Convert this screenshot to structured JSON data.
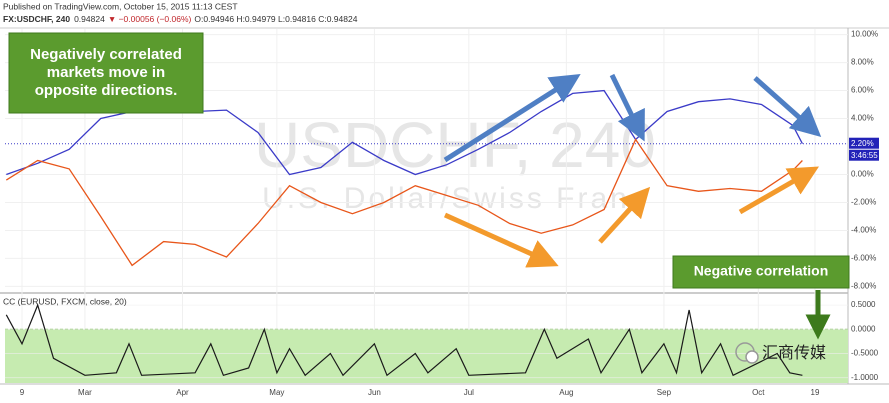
{
  "header": {
    "published": "Published on TradingView.com, October 15, 2015 11:13 CEST",
    "symbol": "FX:USDCHF, 240",
    "price": "0.94824",
    "change": "▼ −0.00056 (−0.06%)",
    "ohlc": "O:0.94946 H:0.94979 L:0.94816 C:0.94824"
  },
  "watermark": "汇商传媒",
  "chart_data": [
    {
      "type": "line",
      "watermark": "USDCHF, 240",
      "watermark_subtitle": "U.S. Dollar/Swiss Franc",
      "annotations": [
        "Negatively correlated markets move in opposite directions.",
        "Negative correlation"
      ],
      "price_label": {
        "value": 2.2,
        "label": "2.20%"
      },
      "countdown": "3:46:55",
      "x": [
        -5,
        5,
        15,
        25,
        35,
        45,
        55,
        65,
        75,
        85,
        95,
        105,
        115,
        125,
        135,
        145,
        155,
        165,
        175,
        185,
        195,
        205,
        215,
        225,
        235,
        245,
        248
      ],
      "series": [
        {
          "color": "#3b3bc8",
          "values": [
            0,
            0.8,
            1.8,
            4,
            4.5,
            4.8,
            4.5,
            4.6,
            3,
            0,
            0.5,
            2.3,
            1,
            0,
            0.7,
            1.8,
            3,
            4.5,
            5.8,
            6,
            2.5,
            4.5,
            5.2,
            5.4,
            5,
            3.5,
            2.2
          ]
        },
        {
          "color": "#e8561a",
          "values": [
            -0.4,
            1,
            0.4,
            -3,
            -6.5,
            -4.8,
            -5,
            -5.9,
            -3.5,
            -0.8,
            -2,
            -2.8,
            -2,
            -0.8,
            -1.5,
            -2.2,
            -3.5,
            -4.2,
            -3.6,
            -2.5,
            2.5,
            -0.8,
            -1.2,
            -1,
            -1.2,
            0.3,
            1
          ]
        }
      ],
      "ylim": [
        -8.4,
        10.4
      ],
      "yticks": [
        {
          "value": 10,
          "label": "10.00%"
        },
        {
          "value": 8,
          "label": "8.00%"
        },
        {
          "value": 6,
          "label": "6.00%"
        },
        {
          "value": 4,
          "label": "4.00%"
        },
        {
          "value": 0,
          "label": "0.00%"
        },
        {
          "value": -2,
          "label": "-2.00%"
        },
        {
          "value": -4,
          "label": "-4.00%"
        },
        {
          "value": -6,
          "label": "-6.00%"
        },
        {
          "value": -8,
          "label": "-8.00%"
        }
      ]
    },
    {
      "type": "line",
      "title": "CC (EURUSD, FXCM, close, 20)",
      "color": "#1a1a1a",
      "band": {
        "from": 0,
        "to": -1.11,
        "color": "#c6ebb0"
      },
      "x": [
        -5,
        0,
        5,
        10,
        20,
        30,
        34,
        38,
        55,
        60,
        64,
        72,
        77,
        81,
        85,
        90,
        98,
        102,
        112,
        116,
        125,
        129,
        138,
        142,
        160,
        166,
        170,
        180,
        184,
        193,
        197,
        204,
        208,
        212,
        216,
        222,
        226,
        240,
        244,
        248
      ],
      "values": [
        0.3,
        -0.3,
        0.5,
        -0.6,
        -0.95,
        -0.9,
        -0.3,
        -0.95,
        -0.9,
        -0.3,
        -0.95,
        -0.8,
        0,
        -0.9,
        -0.4,
        -0.95,
        -0.5,
        -0.95,
        -0.3,
        -0.95,
        -0.5,
        -0.9,
        -0.4,
        -0.95,
        -0.9,
        0,
        -0.6,
        -0.2,
        -0.9,
        0,
        -0.9,
        -0.3,
        -0.9,
        0.4,
        -0.9,
        -0.3,
        -0.95,
        -0.5,
        -0.9,
        -0.95
      ],
      "xlim": [
        -5.4,
        262.5
      ],
      "xticks": [
        {
          "value": 0,
          "label": "9"
        },
        {
          "value": 20,
          "label": "Mar"
        },
        {
          "value": 51,
          "label": "Apr"
        },
        {
          "value": 81,
          "label": "May"
        },
        {
          "value": 112,
          "label": "Jun"
        },
        {
          "value": 142,
          "label": "Jul"
        },
        {
          "value": 173,
          "label": "Aug"
        },
        {
          "value": 204,
          "label": "Sep"
        },
        {
          "value": 234,
          "label": "Oct"
        },
        {
          "value": 252,
          "label": "19"
        }
      ],
      "ylim": [
        -1.11,
        0.73
      ],
      "yticks": [
        {
          "value": 0.5,
          "label": "0.5000"
        },
        {
          "value": 0,
          "label": "0.0000"
        },
        {
          "value": -0.5,
          "label": "-0.5000"
        },
        {
          "value": -1,
          "label": "-1.0000"
        }
      ]
    }
  ]
}
